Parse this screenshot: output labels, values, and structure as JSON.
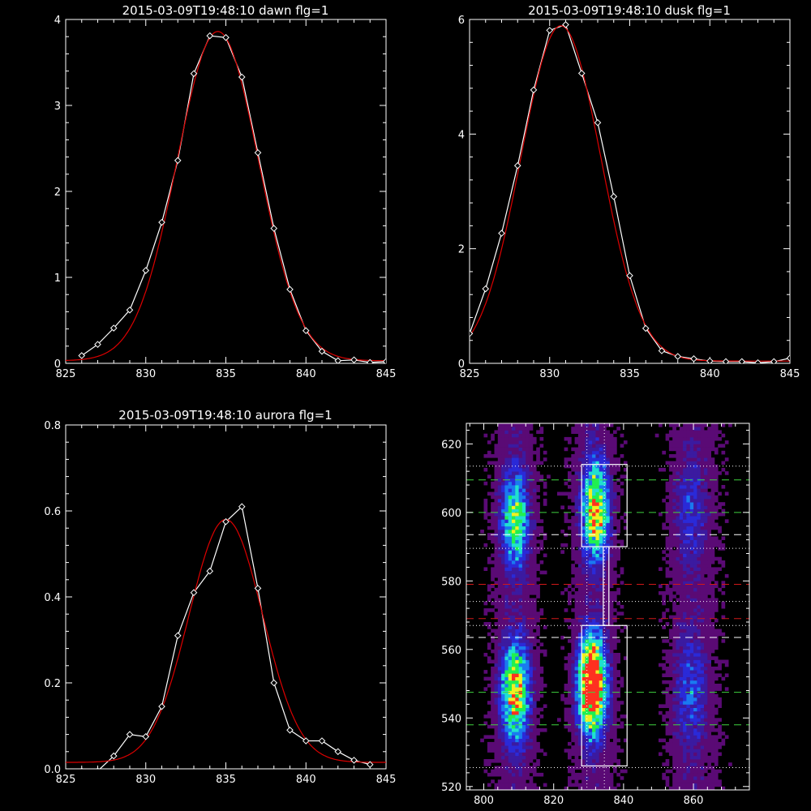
{
  "chart_data": [
    {
      "type": "line",
      "title": "2015-03-09T19:48:10 dawn flg=1",
      "xlim": [
        825,
        845
      ],
      "ylim": [
        0,
        4
      ],
      "xticks": [
        "825",
        "830",
        "835",
        "840",
        "845"
      ],
      "yticks": [
        "0",
        "1",
        "2",
        "3",
        "4"
      ],
      "series": [
        {
          "color": "#ffffff",
          "markers": "diamond",
          "x": [
            826,
            827,
            828,
            829,
            830,
            831,
            832,
            833,
            834,
            835,
            836,
            837,
            838,
            839,
            840,
            841,
            842,
            843,
            844,
            845
          ],
          "y": [
            0.09,
            0.22,
            0.41,
            0.62,
            1.08,
            1.64,
            2.36,
            3.37,
            3.81,
            3.79,
            3.33,
            2.45,
            1.57,
            0.86,
            0.38,
            0.14,
            0.03,
            0.04,
            0.01,
            0.02
          ]
        },
        {
          "color": "#dd0000",
          "fit": "gaussian",
          "center": 834.5,
          "sigma": 2.55,
          "amp": 3.83,
          "base": 0.03
        }
      ]
    },
    {
      "type": "line",
      "title": "2015-03-09T19:48:10 dusk flg=1",
      "xlim": [
        825,
        845
      ],
      "ylim": [
        0,
        6
      ],
      "xticks": [
        "825",
        "830",
        "835",
        "840",
        "845"
      ],
      "yticks": [
        "0",
        "2",
        "4",
        "6"
      ],
      "series": [
        {
          "color": "#ffffff",
          "markers": "diamond",
          "x": [
            825,
            826,
            827,
            828,
            829,
            830,
            831,
            832,
            833,
            834,
            835,
            836,
            837,
            838,
            839,
            840,
            841,
            842,
            843,
            844,
            845
          ],
          "y": [
            0.52,
            1.3,
            2.27,
            3.45,
            4.77,
            5.81,
            5.91,
            5.06,
            4.2,
            2.91,
            1.53,
            0.61,
            0.22,
            0.12,
            0.08,
            0.04,
            0.03,
            0.03,
            0.01,
            0.03,
            0.09
          ]
        },
        {
          "color": "#dd0000",
          "fit": "gaussian",
          "center": 830.7,
          "sigma": 2.5,
          "amp": 5.85,
          "base": 0.04
        }
      ]
    },
    {
      "type": "line",
      "title": "2015-03-09T19:48:10 aurora flg=1",
      "xlim": [
        825,
        845
      ],
      "ylim": [
        0,
        0.8
      ],
      "xticks": [
        "825",
        "830",
        "835",
        "840",
        "845"
      ],
      "yticks": [
        "0.0",
        "0.2",
        "0.4",
        "0.6",
        "0.8"
      ],
      "series": [
        {
          "color": "#ffffff",
          "markers": "diamond",
          "x": [
            826,
            827,
            828,
            829,
            830,
            831,
            832,
            833,
            834,
            835,
            836,
            837,
            838,
            839,
            840,
            841,
            842,
            843,
            844
          ],
          "y": [
            -0.005,
            -0.005,
            0.03,
            0.08,
            0.075,
            0.145,
            0.31,
            0.41,
            0.46,
            0.575,
            0.61,
            0.42,
            0.2,
            0.09,
            0.065,
            0.065,
            0.04,
            0.02,
            0.01
          ]
        },
        {
          "color": "#dd0000",
          "fit": "gaussian",
          "center": 835,
          "sigma": 2.3,
          "amp": 0.565,
          "base": 0.015
        }
      ]
    },
    {
      "type": "heatmap",
      "xlim": [
        795,
        876
      ],
      "ylim": [
        519,
        626
      ],
      "xticks": [
        "800",
        "820",
        "840",
        "860"
      ],
      "yticks": [
        "520",
        "540",
        "560",
        "580",
        "600",
        "620"
      ],
      "colormap": [
        "#5a0a75",
        "#2a2ad8",
        "#1a7af0",
        "#20e0d0",
        "#20f050",
        "#f0f020",
        "#ff3020"
      ],
      "emission_columns": [
        {
          "x_center": 809,
          "x_width": 4.5
        },
        {
          "x_center": 831.5,
          "x_width": 4.5
        },
        {
          "x_center": 860,
          "x_width": 5
        }
      ],
      "emission_blobs": [
        {
          "x": 809,
          "y": 598,
          "sx": 2.6,
          "sy": 9,
          "amp": 0.5
        },
        {
          "x": 809,
          "y": 548,
          "sx": 2.6,
          "sy": 9,
          "amp": 0.72
        },
        {
          "x": 832,
          "y": 601,
          "sx": 2.4,
          "sy": 9,
          "amp": 0.75
        },
        {
          "x": 831,
          "y": 547,
          "sx": 2.6,
          "sy": 7.5,
          "amp": 1.0
        },
        {
          "x": 831,
          "y": 558,
          "sx": 2.3,
          "sy": 6,
          "amp": 0.5
        },
        {
          "x": 859,
          "y": 600,
          "sx": 3,
          "sy": 10,
          "amp": 0.16
        },
        {
          "x": 859,
          "y": 548,
          "sx": 3,
          "sy": 10,
          "amp": 0.2
        }
      ],
      "green_dashed_y": [
        609.5,
        600,
        547.5,
        538
      ],
      "white_dashed_y": [
        593.5,
        563.5
      ],
      "red_dashed_y": [
        579,
        569
      ],
      "dotted_y": [
        613.5,
        589.5,
        574,
        567,
        525.5
      ],
      "dotted_x": [
        829.5,
        834.5
      ],
      "boxes": [
        {
          "x": [
            828,
            841
          ],
          "y": [
            590,
            614
          ]
        },
        {
          "x": [
            828,
            841
          ],
          "y": [
            526,
            567
          ]
        },
        {
          "x": [
            834.2,
            835.8
          ],
          "y": [
            567,
            590
          ]
        }
      ]
    }
  ]
}
